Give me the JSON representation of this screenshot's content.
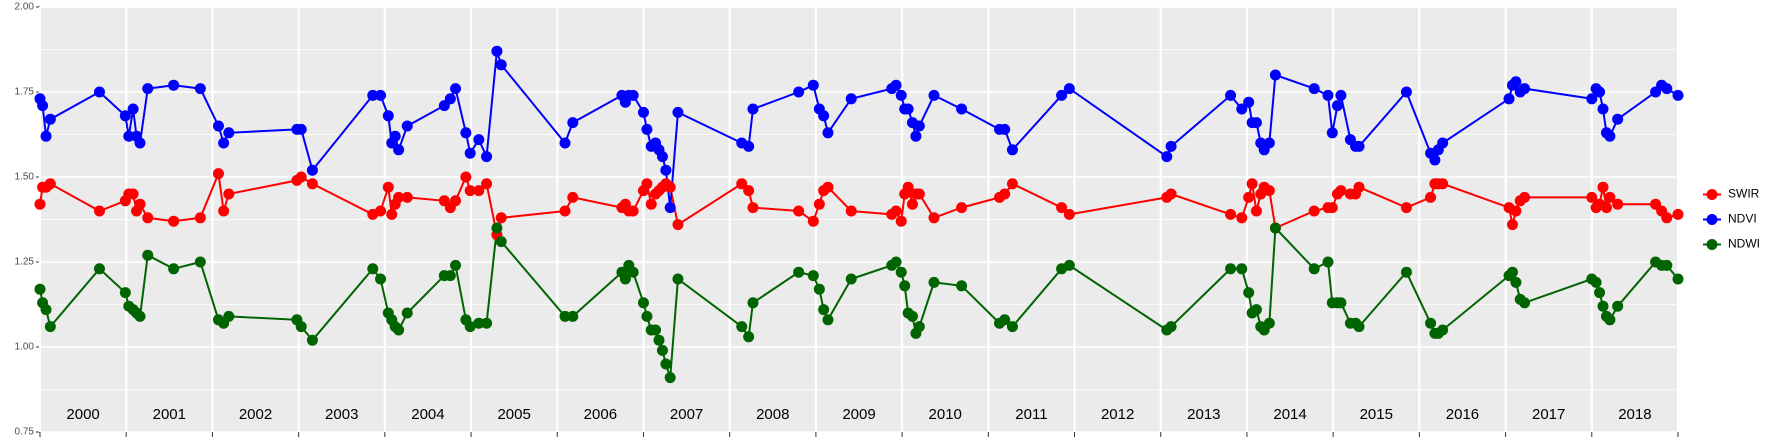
{
  "chart_data": {
    "type": "line",
    "x": [
      2000.0,
      2000.03,
      2000.07,
      2000.12,
      2000.69,
      2000.99,
      2001.03,
      2001.08,
      2001.12,
      2001.16,
      2001.25,
      2001.55,
      2001.86,
      2002.07,
      2002.13,
      2002.19,
      2002.98,
      2003.03,
      2003.16,
      2003.86,
      2003.95,
      2004.04,
      2004.08,
      2004.12,
      2004.16,
      2004.26,
      2004.69,
      2004.76,
      2004.82,
      2004.94,
      2004.99,
      2005.09,
      2005.18,
      2005.3,
      2005.35,
      2006.09,
      2006.18,
      2006.75,
      2006.79,
      2006.83,
      2006.88,
      2007.0,
      2007.04,
      2007.09,
      2007.14,
      2007.18,
      2007.22,
      2007.26,
      2007.31,
      2007.4,
      2008.14,
      2008.22,
      2008.27,
      2008.8,
      2008.97,
      2009.04,
      2009.09,
      2009.14,
      2009.41,
      2009.88,
      2009.93,
      2009.99,
      2010.03,
      2010.07,
      2010.12,
      2010.16,
      2010.2,
      2010.37,
      2010.69,
      2011.13,
      2011.19,
      2011.28,
      2011.85,
      2011.94,
      2013.07,
      2013.12,
      2013.81,
      2013.94,
      2014.02,
      2014.06,
      2014.11,
      2014.16,
      2014.2,
      2014.26,
      2014.33,
      2014.78,
      2014.94,
      2014.99,
      2015.05,
      2015.09,
      2015.2,
      2015.26,
      2015.3,
      2015.85,
      2016.13,
      2016.18,
      2016.22,
      2016.27,
      2017.04,
      2017.08,
      2017.12,
      2017.17,
      2017.22,
      2018.0,
      2018.05,
      2018.09,
      2018.13,
      2018.17,
      2018.21,
      2018.3,
      2018.74,
      2018.81,
      2018.87,
      2019.0
    ],
    "series": [
      {
        "name": "SWIR",
        "color": "#ff0000",
        "values": [
          1.42,
          1.47,
          1.47,
          1.48,
          1.4,
          1.43,
          1.45,
          1.45,
          1.4,
          1.42,
          1.38,
          1.37,
          1.38,
          1.51,
          1.4,
          1.45,
          1.49,
          1.5,
          1.48,
          1.39,
          1.4,
          1.47,
          1.39,
          1.42,
          1.44,
          1.44,
          1.43,
          1.41,
          1.43,
          1.5,
          1.46,
          1.46,
          1.48,
          1.33,
          1.38,
          1.4,
          1.44,
          1.41,
          1.42,
          1.4,
          1.4,
          1.46,
          1.48,
          1.42,
          1.45,
          1.46,
          1.47,
          1.48,
          1.47,
          1.36,
          1.48,
          1.46,
          1.41,
          1.4,
          1.37,
          1.42,
          1.46,
          1.47,
          1.4,
          1.39,
          1.4,
          1.37,
          1.45,
          1.47,
          1.42,
          1.45,
          1.45,
          1.38,
          1.41,
          1.44,
          1.45,
          1.48,
          1.41,
          1.39,
          1.44,
          1.45,
          1.39,
          1.38,
          1.44,
          1.48,
          1.4,
          1.45,
          1.47,
          1.46,
          1.35,
          1.4,
          1.41,
          1.41,
          1.45,
          1.46,
          1.45,
          1.45,
          1.47,
          1.41,
          1.44,
          1.48,
          1.48,
          1.48,
          1.41,
          1.36,
          1.4,
          1.43,
          1.44,
          1.44,
          1.41,
          1.42,
          1.47,
          1.41,
          1.44,
          1.42,
          1.42,
          1.4,
          1.38,
          1.39
        ]
      },
      {
        "name": "NDVI",
        "color": "#0000ff",
        "values": [
          1.73,
          1.71,
          1.62,
          1.67,
          1.75,
          1.68,
          1.62,
          1.7,
          1.62,
          1.6,
          1.76,
          1.77,
          1.76,
          1.65,
          1.6,
          1.63,
          1.64,
          1.64,
          1.52,
          1.74,
          1.74,
          1.68,
          1.6,
          1.62,
          1.58,
          1.65,
          1.71,
          1.73,
          1.76,
          1.63,
          1.57,
          1.61,
          1.56,
          1.87,
          1.83,
          1.6,
          1.66,
          1.74,
          1.72,
          1.74,
          1.74,
          1.69,
          1.64,
          1.59,
          1.6,
          1.58,
          1.56,
          1.52,
          1.41,
          1.69,
          1.6,
          1.59,
          1.7,
          1.75,
          1.77,
          1.7,
          1.68,
          1.63,
          1.73,
          1.76,
          1.77,
          1.74,
          1.7,
          1.7,
          1.66,
          1.62,
          1.65,
          1.74,
          1.7,
          1.64,
          1.64,
          1.58,
          1.74,
          1.76,
          1.56,
          1.59,
          1.74,
          1.7,
          1.72,
          1.66,
          1.66,
          1.6,
          1.58,
          1.6,
          1.8,
          1.76,
          1.74,
          1.63,
          1.71,
          1.74,
          1.61,
          1.59,
          1.59,
          1.75,
          1.57,
          1.55,
          1.58,
          1.6,
          1.73,
          1.77,
          1.78,
          1.75,
          1.76,
          1.73,
          1.76,
          1.75,
          1.7,
          1.63,
          1.62,
          1.67,
          1.75,
          1.77,
          1.76,
          1.74
        ]
      },
      {
        "name": "NDWI",
        "color": "#006400",
        "values": [
          1.17,
          1.13,
          1.11,
          1.06,
          1.23,
          1.16,
          1.12,
          1.11,
          1.1,
          1.09,
          1.27,
          1.23,
          1.25,
          1.08,
          1.07,
          1.09,
          1.08,
          1.06,
          1.02,
          1.23,
          1.2,
          1.1,
          1.08,
          1.06,
          1.05,
          1.1,
          1.21,
          1.21,
          1.24,
          1.08,
          1.06,
          1.07,
          1.07,
          1.35,
          1.31,
          1.09,
          1.09,
          1.22,
          1.2,
          1.24,
          1.22,
          1.13,
          1.09,
          1.05,
          1.05,
          1.02,
          0.99,
          0.95,
          0.91,
          1.2,
          1.06,
          1.03,
          1.13,
          1.22,
          1.21,
          1.17,
          1.11,
          1.08,
          1.2,
          1.24,
          1.25,
          1.22,
          1.18,
          1.1,
          1.09,
          1.04,
          1.06,
          1.19,
          1.18,
          1.07,
          1.08,
          1.06,
          1.23,
          1.24,
          1.05,
          1.06,
          1.23,
          1.23,
          1.16,
          1.1,
          1.11,
          1.06,
          1.05,
          1.07,
          1.35,
          1.23,
          1.25,
          1.13,
          1.13,
          1.13,
          1.07,
          1.07,
          1.06,
          1.22,
          1.07,
          1.04,
          1.04,
          1.05,
          1.21,
          1.22,
          1.19,
          1.14,
          1.13,
          1.2,
          1.19,
          1.16,
          1.12,
          1.09,
          1.08,
          1.12,
          1.25,
          1.24,
          1.24,
          1.2
        ]
      }
    ],
    "xlim": [
      2000,
      2019
    ],
    "xgrid": [
      2000,
      2001,
      2002,
      2003,
      2004,
      2005,
      2006,
      2007,
      2008,
      2009,
      2010,
      2011,
      2012,
      2013,
      2014,
      2015,
      2016,
      2017,
      2018,
      2019
    ],
    "xticks": [
      {
        "value": 2000.5,
        "label": "2000"
      },
      {
        "value": 2001.5,
        "label": "2001"
      },
      {
        "value": 2002.5,
        "label": "2002"
      },
      {
        "value": 2003.5,
        "label": "2003"
      },
      {
        "value": 2004.5,
        "label": "2004"
      },
      {
        "value": 2005.5,
        "label": "2005"
      },
      {
        "value": 2006.5,
        "label": "2006"
      },
      {
        "value": 2007.5,
        "label": "2007"
      },
      {
        "value": 2008.5,
        "label": "2008"
      },
      {
        "value": 2009.5,
        "label": "2009"
      },
      {
        "value": 2010.5,
        "label": "2010"
      },
      {
        "value": 2011.5,
        "label": "2011"
      },
      {
        "value": 2012.5,
        "label": "2012"
      },
      {
        "value": 2013.5,
        "label": "2013"
      },
      {
        "value": 2014.5,
        "label": "2014"
      },
      {
        "value": 2015.5,
        "label": "2015"
      },
      {
        "value": 2016.5,
        "label": "2016"
      },
      {
        "value": 2017.5,
        "label": "2017"
      },
      {
        "value": 2018.5,
        "label": "2018"
      }
    ],
    "ylim": [
      0.75,
      2.0
    ],
    "yticks": [
      {
        "value": 0.75,
        "label": "0.75"
      },
      {
        "value": 1.0,
        "label": "1.00"
      },
      {
        "value": 1.25,
        "label": "1.25"
      },
      {
        "value": 1.5,
        "label": "1.50"
      },
      {
        "value": 1.75,
        "label": "1.75"
      },
      {
        "value": 2.0,
        "label": "2.00"
      }
    ],
    "grid": true,
    "legend": "right"
  }
}
